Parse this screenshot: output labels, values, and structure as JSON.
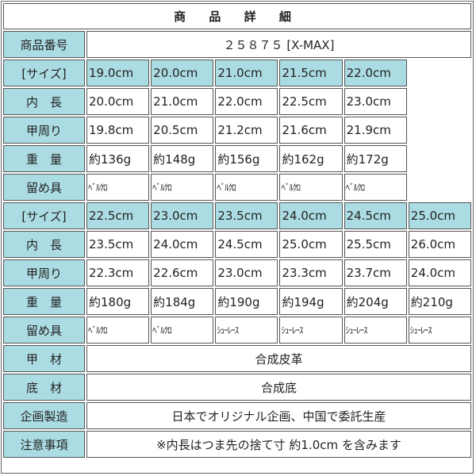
{
  "title": "商 品 詳 細",
  "product_number_label": "商品番号",
  "product_number": "２５８７５ [X-MAX]",
  "colors": {
    "label_bg": "#acdce3",
    "border": "#555555"
  },
  "blocks": [
    {
      "rows": [
        {
          "label": "[サイズ]",
          "type": "size",
          "values": [
            "19.0cm",
            "20.0cm",
            "21.0cm",
            "21.5cm",
            "22.0cm"
          ]
        },
        {
          "label": "内　長",
          "type": "val",
          "values": [
            "20.0cm",
            "21.0cm",
            "22.0cm",
            "22.5cm",
            "23.0cm"
          ]
        },
        {
          "label": "甲周り",
          "type": "val",
          "values": [
            "19.8cm",
            "20.5cm",
            "21.2cm",
            "21.6cm",
            "21.9cm"
          ]
        },
        {
          "label": "重　量",
          "type": "val",
          "values": [
            "約136g",
            "約148g",
            "約156g",
            "約162g",
            "約172g"
          ]
        },
        {
          "label": "留め具",
          "type": "small",
          "values": [
            "ﾍﾞﾙｸﾛ",
            "ﾍﾞﾙｸﾛ",
            "ﾍﾞﾙｸﾛ",
            "ﾍﾞﾙｸﾛ",
            "ﾍﾞﾙｸﾛ"
          ]
        }
      ]
    },
    {
      "rows": [
        {
          "label": "[サイズ]",
          "type": "size",
          "values": [
            "22.5cm",
            "23.0cm",
            "23.5cm",
            "24.0cm",
            "24.5cm",
            "25.0cm"
          ]
        },
        {
          "label": "内　長",
          "type": "val",
          "values": [
            "23.5cm",
            "24.0cm",
            "24.5cm",
            "25.0cm",
            "25.5cm",
            "26.0cm"
          ]
        },
        {
          "label": "甲周り",
          "type": "val",
          "values": [
            "22.3cm",
            "22.6cm",
            "23.0cm",
            "23.3cm",
            "23.7cm",
            "24.0cm"
          ]
        },
        {
          "label": "重　量",
          "type": "val",
          "values": [
            "約180g",
            "約184g",
            "約190g",
            "約194g",
            "約204g",
            "約210g"
          ]
        },
        {
          "label": "留め具",
          "type": "small",
          "values": [
            "ﾍﾞﾙｸﾛ",
            "ﾍﾞﾙｸﾛ",
            "ｼｭｰﾚｰｽ",
            "ｼｭｰﾚｰｽ",
            "ｼｭｰﾚｰｽ",
            "ｼｭｰﾚｰｽ"
          ]
        }
      ]
    }
  ],
  "footer_rows": [
    {
      "label": "甲　材",
      "value": "合成皮革"
    },
    {
      "label": "底　材",
      "value": "合成底"
    },
    {
      "label": "企画製造",
      "value": "日本でオリジナル企画、中国で委託生産"
    },
    {
      "label": "注意事項",
      "value": "※内長はつま先の捨て寸 約1.0cm を含みます"
    }
  ]
}
